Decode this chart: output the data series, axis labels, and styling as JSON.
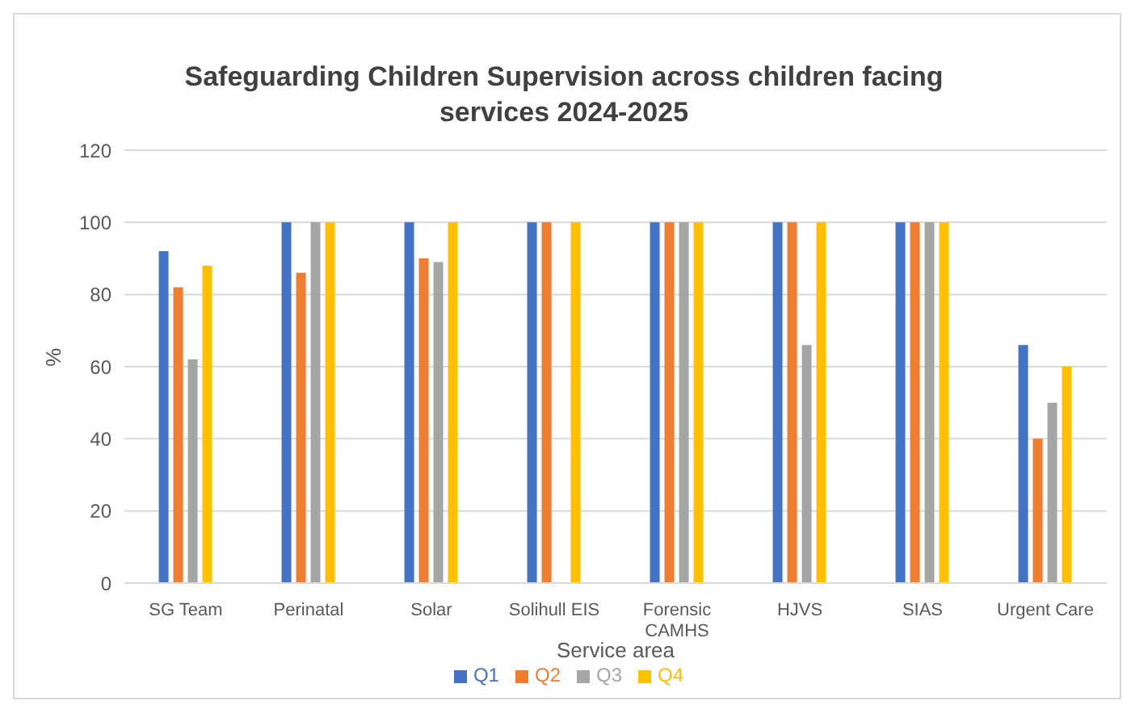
{
  "chart_data": {
    "type": "bar",
    "title": "Safeguarding Children Supervision across children facing services 2024-2025",
    "xlabel": "Service area",
    "ylabel": "%",
    "categories": [
      "SG Team",
      "Perinatal",
      "Solar",
      "Solihull EIS",
      "Forensic CAMHS",
      "HJVS",
      "SIAS",
      "Urgent Care"
    ],
    "series": [
      {
        "name": "Q1",
        "color": "#4472c4",
        "values": [
          92,
          100,
          100,
          100,
          100,
          100,
          100,
          66
        ]
      },
      {
        "name": "Q2",
        "color": "#ed7d31",
        "values": [
          82,
          86,
          90,
          100,
          100,
          100,
          100,
          40
        ]
      },
      {
        "name": "Q3",
        "color": "#a5a5a5",
        "values": [
          62,
          100,
          89,
          null,
          100,
          66,
          100,
          50
        ]
      },
      {
        "name": "Q4",
        "color": "#ffc000",
        "values": [
          88,
          100,
          100,
          100,
          100,
          100,
          100,
          60
        ]
      }
    ],
    "ylim": [
      0,
      120
    ],
    "yticks": [
      0,
      20,
      40,
      60,
      80,
      100,
      120
    ],
    "grid": "y",
    "legend": "bottom"
  }
}
